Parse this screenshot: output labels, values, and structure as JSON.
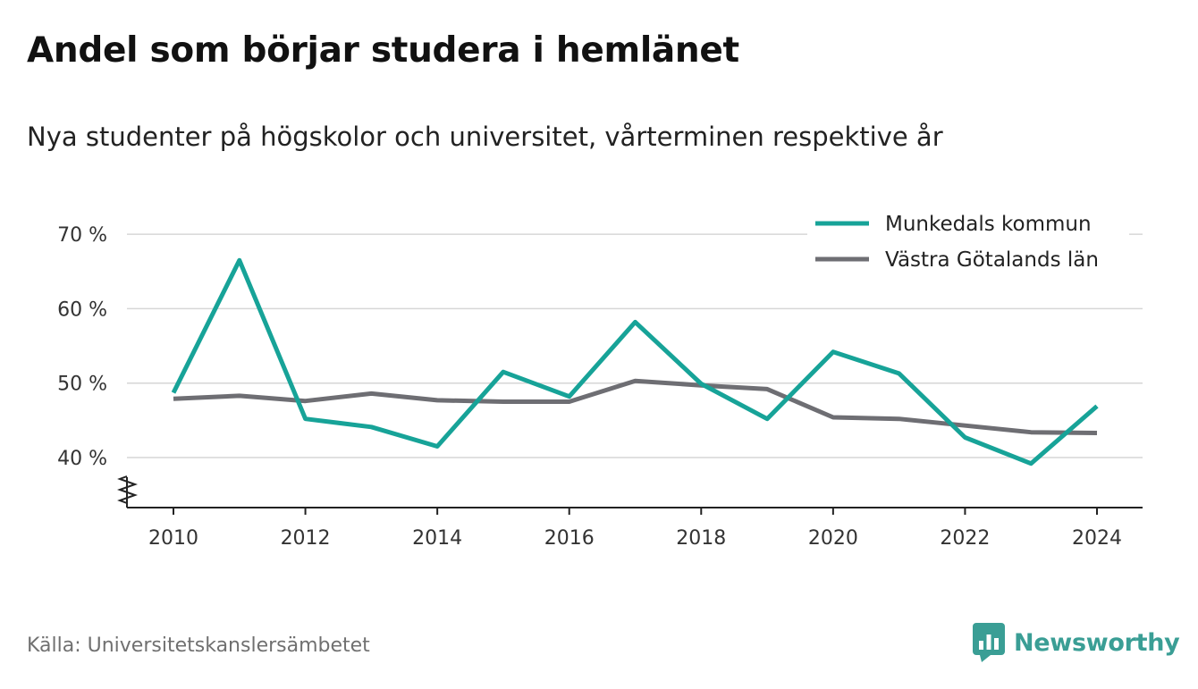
{
  "title": "Andel som börjar studera i hemlänet",
  "subtitle": "Nya studenter på högskolor och universitet, vårterminen respektive år",
  "source": "Källa: Universitetskanslersämbetet",
  "brand": {
    "name": "Newsworthy",
    "icon": "newsworthy-logo-icon",
    "color": "#3a9e95"
  },
  "chart_data": {
    "type": "line",
    "x": [
      2010,
      2011,
      2012,
      2013,
      2014,
      2015,
      2016,
      2017,
      2018,
      2019,
      2020,
      2021,
      2022,
      2023,
      2024
    ],
    "series": [
      {
        "name": "Munkedals kommun",
        "color": "#17a398",
        "values": [
          48.7,
          66.5,
          45.2,
          44.1,
          41.5,
          51.5,
          48.2,
          58.2,
          49.9,
          45.2,
          54.2,
          51.3,
          42.7,
          39.2,
          46.9
        ]
      },
      {
        "name": "Västra Götalands län",
        "color": "#6e6e73",
        "values": [
          47.9,
          48.3,
          47.6,
          48.6,
          47.7,
          47.5,
          47.5,
          50.3,
          49.7,
          49.2,
          45.4,
          45.2,
          44.3,
          43.4,
          43.3
        ]
      }
    ],
    "xticks": [
      "2010",
      "2012",
      "2014",
      "2016",
      "2018",
      "2020",
      "2022",
      "2024"
    ],
    "yticks": [
      "40 %",
      "50 %",
      "60 %",
      "70 %"
    ],
    "ytick_values": [
      40,
      50,
      60,
      70
    ],
    "xlabel": "",
    "ylabel": "",
    "grid": true,
    "y_axis_break": true,
    "legend_position": "top-right"
  }
}
